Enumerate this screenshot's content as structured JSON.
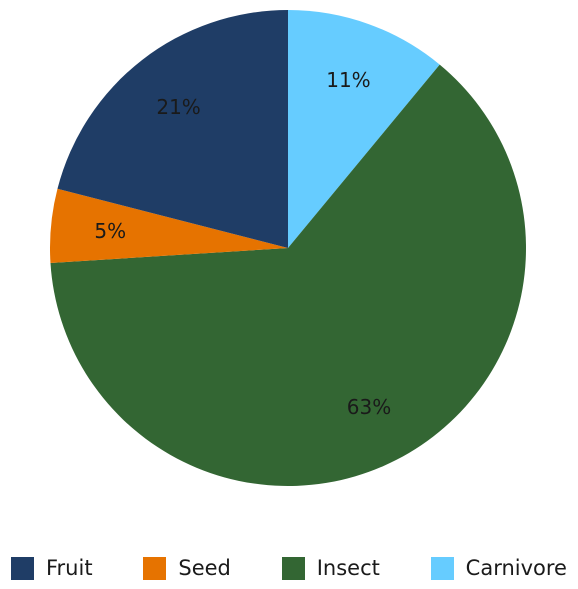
{
  "chart_data": {
    "type": "pie",
    "slices": [
      {
        "name": "Carnivore",
        "value": 11,
        "label": "11%",
        "color": "#66ccff"
      },
      {
        "name": "Insect",
        "value": 63,
        "label": "63%",
        "color": "#336633"
      },
      {
        "name": "Seed",
        "value": 5,
        "label": "5%",
        "color": "#e67300"
      },
      {
        "name": "Fruit",
        "value": 21,
        "label": "21%",
        "color": "#1f3d66"
      }
    ],
    "legend": {
      "placement": "bottom",
      "entries": [
        {
          "name": "Fruit",
          "color": "#1f3d66"
        },
        {
          "name": "Seed",
          "color": "#e67300"
        },
        {
          "name": "Insect",
          "color": "#336633"
        },
        {
          "name": "Carnivore",
          "color": "#66ccff"
        }
      ]
    },
    "start": "12 o'clock",
    "direction": "clockwise"
  }
}
